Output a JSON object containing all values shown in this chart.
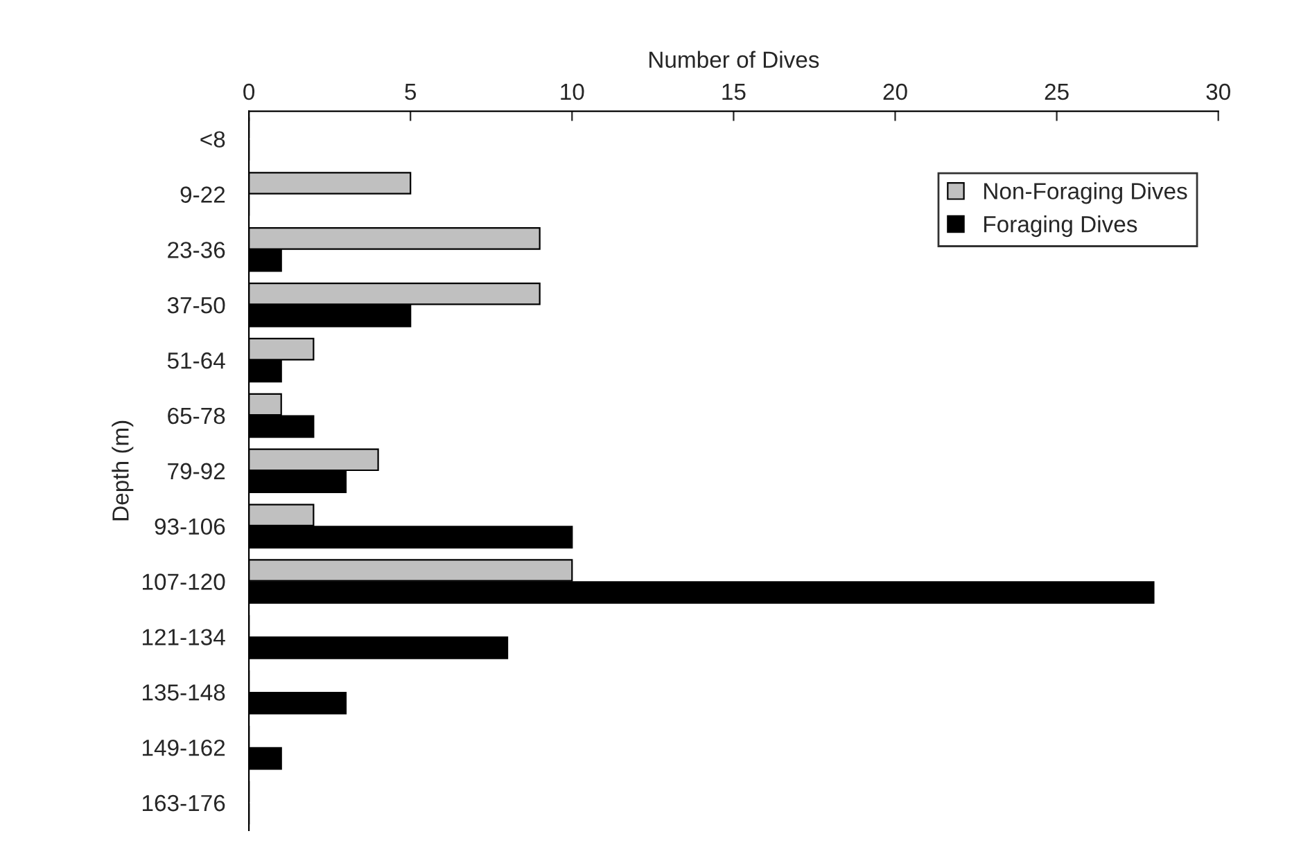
{
  "chart_data": {
    "type": "bar",
    "orientation": "horizontal",
    "xlabel": "Number of Dives",
    "ylabel": "Depth (m)",
    "categories": [
      "<8",
      "9-22",
      "23-36",
      "37-50",
      "51-64",
      "65-78",
      "79-92",
      "93-106",
      "107-120",
      "121-134",
      "135-148",
      "149-162",
      "163-176"
    ],
    "series": [
      {
        "name": "Non-Foraging Dives",
        "color": "#c0c0c0",
        "values": [
          0,
          5,
          9,
          9,
          2,
          1,
          4,
          2,
          10,
          0,
          0,
          0,
          0
        ]
      },
      {
        "name": "Foraging Dives",
        "color": "#000000",
        "values": [
          0,
          0,
          1,
          5,
          1,
          2,
          3,
          10,
          28,
          8,
          3,
          1,
          0
        ]
      }
    ],
    "xlim": [
      0,
      30
    ],
    "xticks": [
      0,
      5,
      10,
      15,
      20,
      25,
      30
    ],
    "grid": false,
    "legend": "top right"
  }
}
